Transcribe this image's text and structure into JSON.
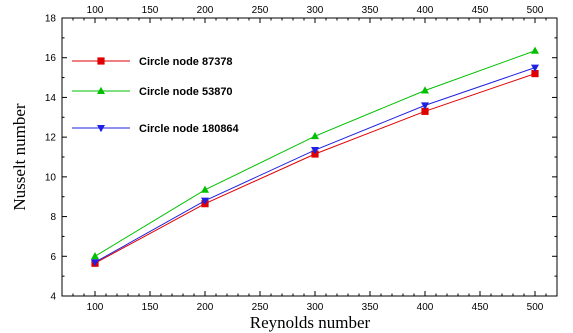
{
  "chart_data": {
    "type": "line",
    "xlabel": "Reynolds number",
    "ylabel": "Nusselt number",
    "xlim": [
      70,
      520
    ],
    "ylim": [
      4,
      18
    ],
    "x_ticks": [
      100,
      150,
      200,
      250,
      300,
      350,
      400,
      450,
      500
    ],
    "x_ticks_top": [
      100,
      150,
      200,
      250,
      300,
      350,
      400,
      450,
      500
    ],
    "y_ticks": [
      4,
      6,
      8,
      10,
      12,
      14,
      16,
      18
    ],
    "grid": false,
    "legend_position": "top-left",
    "x": [
      100,
      200,
      300,
      400,
      500
    ],
    "series": [
      {
        "name": "Circle node 87378",
        "color": "#e00000",
        "marker": "square",
        "values": [
          5.65,
          8.65,
          11.15,
          13.3,
          15.2
        ]
      },
      {
        "name": "Circle node 53870",
        "color": "#00c000",
        "marker": "triangle-up",
        "values": [
          6.0,
          9.35,
          12.05,
          14.35,
          16.35
        ]
      },
      {
        "name": "Circle node 180864",
        "color": "#2020e0",
        "marker": "triangle-down",
        "values": [
          5.7,
          8.8,
          11.35,
          13.6,
          15.5
        ]
      }
    ]
  }
}
